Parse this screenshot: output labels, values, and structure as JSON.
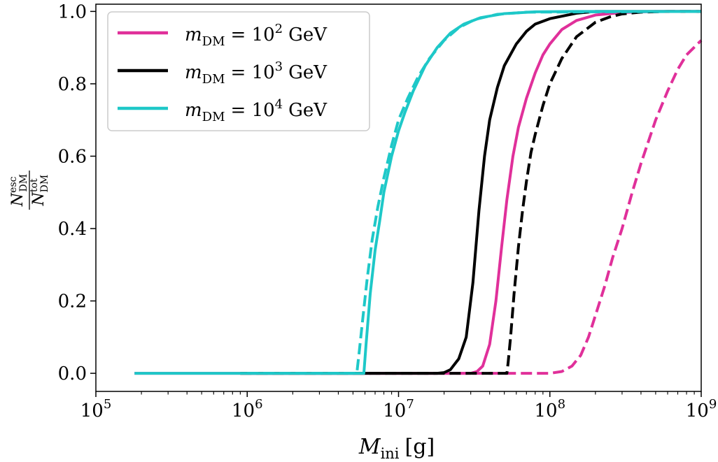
{
  "chart_data": {
    "type": "line",
    "title": "",
    "xscale": "log",
    "xlim": [
      100000,
      1000000000
    ],
    "ylim": [
      -0.05,
      1.02
    ],
    "xlabel": {
      "main": "M",
      "sub": "ini",
      "unit": "[g]"
    },
    "ylabel": {
      "num": "N",
      "num_sup": "esc",
      "num_sub": "DM",
      "den": "N",
      "den_sup": "tot",
      "den_sub": "DM"
    },
    "x_ticks": [
      {
        "value": 100000,
        "base": "10",
        "exp": "5"
      },
      {
        "value": 1000000,
        "base": "10",
        "exp": "6"
      },
      {
        "value": 10000000,
        "base": "10",
        "exp": "7"
      },
      {
        "value": 100000000,
        "base": "10",
        "exp": "8"
      },
      {
        "value": 1000000000,
        "base": "10",
        "exp": "9"
      }
    ],
    "y_ticks": [
      {
        "value": 0.0,
        "label": "0.0"
      },
      {
        "value": 0.2,
        "label": "0.2"
      },
      {
        "value": 0.4,
        "label": "0.4"
      },
      {
        "value": 0.6,
        "label": "0.6"
      },
      {
        "value": 0.8,
        "label": "0.8"
      },
      {
        "value": 1.0,
        "label": "1.0"
      }
    ],
    "legend": {
      "placement": "top-left",
      "entries": [
        {
          "color": "#e0309a",
          "symbol": "m",
          "sub": "DM",
          "eq": "= 10",
          "exp": "2",
          "unit": "GeV"
        },
        {
          "color": "#000000",
          "symbol": "m",
          "sub": "DM",
          "eq": "= 10",
          "exp": "3",
          "unit": "GeV"
        },
        {
          "color": "#1ec8c8",
          "symbol": "m",
          "sub": "DM",
          "eq": "= 10",
          "exp": "4",
          "unit": "GeV"
        }
      ]
    },
    "series": [
      {
        "name": "m_DM = 10^2 GeV (solid)",
        "color": "#e0309a",
        "dash": false,
        "x": [
          180000,
          30000000,
          33000000,
          36000000,
          40000000,
          44000000,
          48000000,
          52000000,
          57000000,
          62000000,
          70000000,
          80000000,
          90000000,
          100000000,
          120000000,
          150000000,
          200000000,
          300000000,
          500000000,
          1000000000
        ],
        "y": [
          0,
          0,
          0.005,
          0.02,
          0.08,
          0.2,
          0.35,
          0.48,
          0.6,
          0.68,
          0.76,
          0.83,
          0.88,
          0.91,
          0.95,
          0.975,
          0.99,
          0.997,
          1.0,
          1.0
        ]
      },
      {
        "name": "m_DM = 10^2 GeV (dashed)",
        "color": "#e0309a",
        "dash": true,
        "x": [
          1000000,
          100000000,
          120000000,
          140000000,
          160000000,
          180000000,
          200000000,
          230000000,
          260000000,
          300000000,
          350000000,
          400000000,
          500000000,
          600000000,
          700000000,
          800000000,
          1000000000
        ],
        "y": [
          0,
          0,
          0.005,
          0.02,
          0.05,
          0.1,
          0.16,
          0.24,
          0.32,
          0.4,
          0.5,
          0.58,
          0.7,
          0.78,
          0.84,
          0.88,
          0.92
        ]
      },
      {
        "name": "m_DM = 10^3 GeV (solid)",
        "color": "#000000",
        "dash": false,
        "x": [
          900000,
          18000000,
          20000000,
          22000000,
          25000000,
          28000000,
          31000000,
          34000000,
          37000000,
          40000000,
          45000000,
          50000000,
          60000000,
          70000000,
          80000000,
          100000000,
          150000000,
          200000000,
          1000000000
        ],
        "y": [
          0,
          0,
          0.002,
          0.01,
          0.04,
          0.1,
          0.25,
          0.45,
          0.6,
          0.7,
          0.79,
          0.85,
          0.91,
          0.945,
          0.965,
          0.98,
          0.995,
          1.0,
          1.0
        ]
      },
      {
        "name": "m_DM = 10^3 GeV (dashed)",
        "color": "#000000",
        "dash": true,
        "x": [
          900000,
          52000000,
          53000000,
          55000000,
          58000000,
          62000000,
          66000000,
          70000000,
          75000000,
          80000000,
          90000000,
          100000000,
          120000000,
          150000000,
          200000000,
          250000000,
          300000000,
          400000000,
          600000000,
          1000000000
        ],
        "y": [
          0,
          0,
          0.03,
          0.1,
          0.22,
          0.35,
          0.45,
          0.53,
          0.61,
          0.66,
          0.74,
          0.8,
          0.87,
          0.93,
          0.97,
          0.985,
          0.993,
          0.998,
          1.0,
          1.0
        ]
      },
      {
        "name": "m_DM = 10^4 GeV (solid)",
        "color": "#1ec8c8",
        "dash": false,
        "x": [
          180000,
          5900000,
          6100000,
          6500000,
          7000000,
          7500000,
          8000000,
          9000000,
          10000000,
          11000000,
          12500000,
          15000000,
          18000000,
          22000000,
          27000000,
          35000000,
          50000000,
          80000000,
          150000000,
          1000000000
        ],
        "y": [
          0,
          0,
          0.08,
          0.22,
          0.34,
          0.42,
          0.5,
          0.6,
          0.67,
          0.72,
          0.78,
          0.85,
          0.9,
          0.94,
          0.965,
          0.983,
          0.994,
          0.999,
          1.0,
          1.0
        ]
      },
      {
        "name": "m_DM = 10^4 GeV (dashed)",
        "color": "#1ec8c8",
        "dash": true,
        "x": [
          1000000,
          5300000,
          5500000,
          5800000,
          6200000,
          6700000,
          7300000,
          8000000,
          9000000,
          10000000,
          11500000,
          13500000,
          16000000,
          20000000,
          25000000,
          32000000,
          45000000,
          70000000,
          1000000000
        ],
        "y": [
          0,
          0,
          0.06,
          0.15,
          0.26,
          0.37,
          0.46,
          0.54,
          0.63,
          0.7,
          0.76,
          0.82,
          0.87,
          0.92,
          0.955,
          0.978,
          0.992,
          0.998,
          1.0
        ]
      }
    ]
  }
}
